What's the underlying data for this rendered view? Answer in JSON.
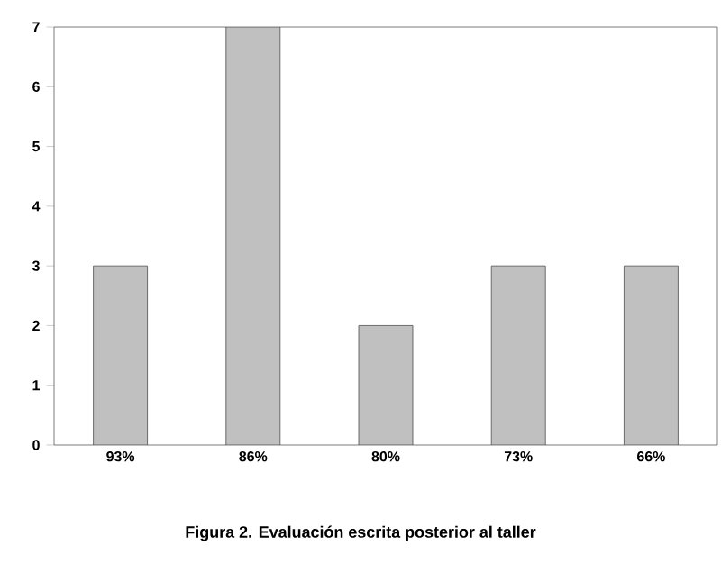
{
  "chart_data": {
    "type": "bar",
    "title": "Figura 2. Evaluación escrita posterior al taller",
    "categories": [
      "93%",
      "86%",
      "80%",
      "73%",
      "66%"
    ],
    "values": [
      3,
      7,
      2,
      3,
      3
    ],
    "color": "#c0c0c0",
    "ylim": [
      0,
      7
    ],
    "yticks": [
      0,
      1,
      2,
      3,
      4,
      5,
      6,
      7
    ]
  }
}
